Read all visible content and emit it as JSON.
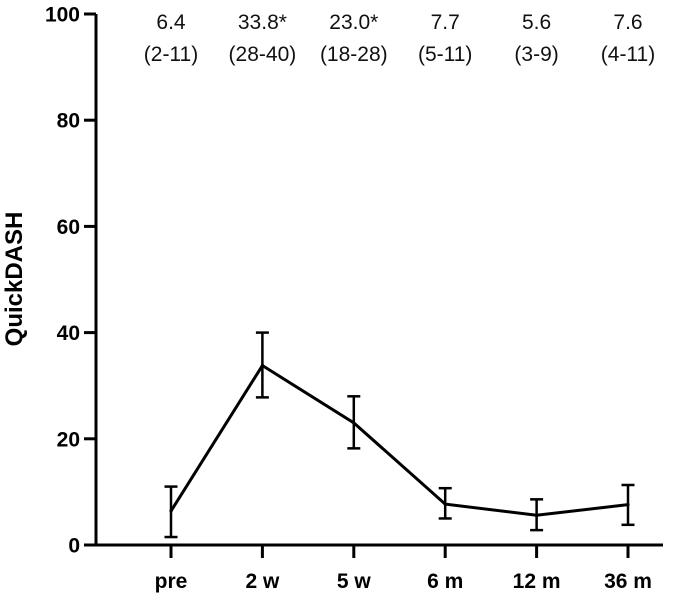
{
  "chart_data": {
    "type": "line",
    "ylabel": "QuickDASH",
    "xlabel": "",
    "ylim": [
      0,
      100
    ],
    "yticks": [
      0,
      20,
      40,
      60,
      80,
      100
    ],
    "categories": [
      "pre",
      "2 w",
      "5 w",
      "6 m",
      "12 m",
      "36 m"
    ],
    "series": [
      {
        "values": [
          6.4,
          33.8,
          23.0,
          7.7,
          5.6,
          7.6
        ],
        "lower": [
          1.5,
          27.8,
          18.2,
          5.0,
          2.8,
          3.8
        ],
        "upper": [
          11.0,
          40.0,
          28.0,
          10.7,
          8.6,
          11.3
        ]
      }
    ],
    "annotations": [
      {
        "value": "6.4",
        "range": "(2-11)"
      },
      {
        "value": "33.8*",
        "range": "(28-40)"
      },
      {
        "value": "23.0*",
        "range": "(18-28)"
      },
      {
        "value": "7.7",
        "range": "(5-11)"
      },
      {
        "value": "5.6",
        "range": "(3-9)"
      },
      {
        "value": "7.6",
        "range": "(4-11)"
      }
    ],
    "grid": false,
    "colors": {
      "line": "#000000",
      "text": "#111111"
    }
  }
}
